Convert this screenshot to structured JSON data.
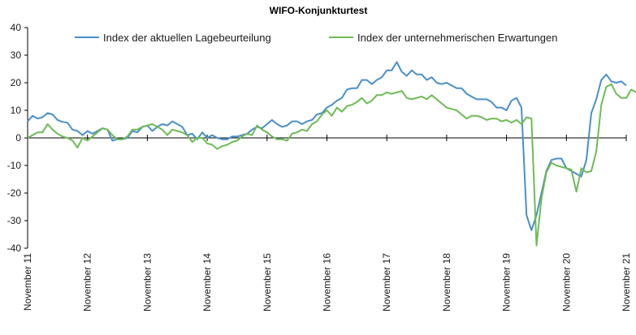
{
  "chart_data": {
    "type": "line",
    "title": "WIFO-Konjunkturtest",
    "xlabel": "",
    "ylabel": "",
    "ylim": [
      -40,
      40
    ],
    "yticks": [
      -40,
      -30,
      -20,
      -10,
      0,
      10,
      20,
      30,
      40
    ],
    "grid": false,
    "legend_position": "top",
    "x_tick_labels": [
      "November 11",
      "November 12",
      "November 13",
      "November 14",
      "November 15",
      "November 16",
      "November 17",
      "November 18",
      "November 19",
      "November 20",
      "November 21"
    ],
    "series": [
      {
        "name": "Index der aktuellen Lagebeurteilung",
        "color": "#4a8fc9",
        "values": [
          6,
          8,
          7,
          7.5,
          9,
          8.5,
          6.5,
          5.8,
          5.5,
          3,
          2.5,
          1,
          2.5,
          1.5,
          2.5,
          3.5,
          3,
          -1,
          -0.5,
          -0.5,
          0,
          2.5,
          2,
          4,
          4.5,
          2.5,
          4,
          5,
          4.5,
          6,
          5,
          4,
          1,
          1.5,
          -0.5,
          2,
          0,
          1,
          0,
          -0.5,
          -0.5,
          0.5,
          0.5,
          1,
          1.5,
          3,
          4,
          3.5,
          5,
          6.5,
          5,
          4,
          4.5,
          6,
          6,
          5,
          6,
          6.5,
          8.5,
          9,
          11,
          12,
          13.5,
          14.5,
          17.5,
          18,
          18,
          21,
          21,
          19.5,
          21,
          22,
          24.5,
          24.5,
          27.5,
          24,
          22.5,
          24.5,
          23,
          23,
          21,
          22,
          20,
          19.5,
          20,
          19,
          18,
          18,
          16,
          15,
          14,
          14,
          14,
          13,
          11,
          11,
          10,
          13.5,
          14.5,
          11,
          -28,
          -33.5,
          -28,
          -20,
          -12,
          -8,
          -7.5,
          -7.5,
          -11,
          -12,
          -13,
          -14,
          -8,
          9,
          14,
          21,
          23,
          20.5,
          20,
          20.5,
          19
        ]
      },
      {
        "name": "Index der unternehmerischen Erwartungen",
        "color": "#6dbb55",
        "values": [
          0,
          1,
          2,
          2,
          5,
          3,
          1.5,
          0.5,
          0,
          -1,
          -3.5,
          0,
          -1,
          0.5,
          2,
          3.5,
          3,
          1,
          -0.5,
          -0.5,
          0.5,
          3,
          3,
          4,
          4.5,
          5,
          4,
          3,
          1,
          3,
          2.5,
          2,
          1,
          -1.5,
          0,
          0,
          -2,
          -2.5,
          -4,
          -3,
          -2.5,
          -1.5,
          -1,
          0.5,
          1.5,
          1,
          4.5,
          3,
          2,
          0.5,
          -0.5,
          -0.5,
          -1,
          1.5,
          2,
          3,
          2.5,
          5,
          6,
          8.5,
          10,
          8,
          11,
          9.5,
          11.5,
          12,
          13,
          14.5,
          12.5,
          13.5,
          15.5,
          15.5,
          16.5,
          16,
          16.5,
          17,
          14.5,
          14,
          14.5,
          15,
          14,
          15.5,
          14,
          12.5,
          11,
          10.5,
          10,
          8.5,
          7,
          8,
          8,
          7.5,
          6.5,
          7,
          7,
          6,
          6.5,
          5.5,
          6.5,
          5,
          7.5,
          7,
          -39,
          -22,
          -12.5,
          -9,
          -10,
          -10.5,
          -11,
          -11.5,
          -19.5,
          -11,
          -12.5,
          -12,
          -5,
          12,
          18.5,
          19.5,
          16,
          14.5,
          14.5,
          17.5,
          16.5
        ]
      }
    ]
  }
}
